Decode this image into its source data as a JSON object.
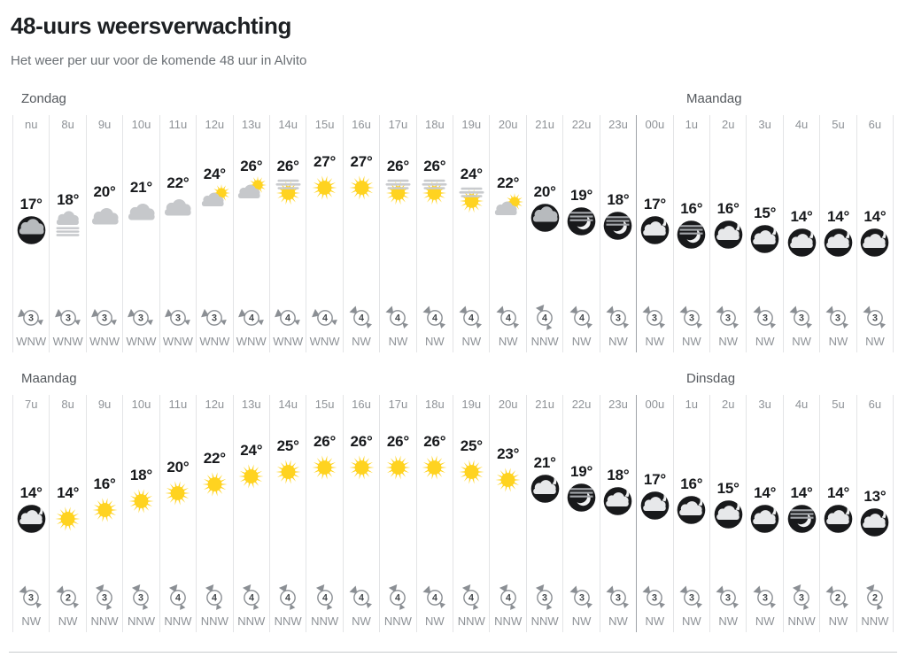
{
  "header": {
    "title": "48-uurs weersverwachting",
    "subtitle": "Het weer per uur voor de komende 48 uur in Alvito"
  },
  "colors": {
    "sun": "#ffd320",
    "cloud_gray": "#c6c8cb",
    "haze_line": "#c9cbce",
    "night_bg": "#18191b",
    "night_cloud": "#e7e8ea",
    "night_cloud_gray": "#b7babd",
    "night_haze_line": "#a2a5a9",
    "wind_gray": "#8b8f94",
    "wind_number": "#43474b"
  },
  "blocks": [
    {
      "left_day": "Zondag",
      "right_day": "Maandag",
      "day_split_index": 17,
      "hours": [
        {
          "hour": "nu",
          "temp": 17,
          "icon": "night-overcast",
          "wind_force": 3,
          "wind_dir": "WNW"
        },
        {
          "hour": "8u",
          "temp": 18,
          "icon": "mist",
          "wind_force": 3,
          "wind_dir": "WNW"
        },
        {
          "hour": "9u",
          "temp": 20,
          "icon": "cloud",
          "wind_force": 3,
          "wind_dir": "WNW"
        },
        {
          "hour": "10u",
          "temp": 21,
          "icon": "cloud",
          "wind_force": 3,
          "wind_dir": "WNW"
        },
        {
          "hour": "11u",
          "temp": 22,
          "icon": "cloud",
          "wind_force": 3,
          "wind_dir": "WNW"
        },
        {
          "hour": "12u",
          "temp": 24,
          "icon": "cloud-sun",
          "wind_force": 3,
          "wind_dir": "WNW"
        },
        {
          "hour": "13u",
          "temp": 26,
          "icon": "cloud-sun",
          "wind_force": 4,
          "wind_dir": "WNW"
        },
        {
          "hour": "14u",
          "temp": 26,
          "icon": "sun-haze",
          "wind_force": 4,
          "wind_dir": "WNW"
        },
        {
          "hour": "15u",
          "temp": 27,
          "icon": "sun",
          "wind_force": 4,
          "wind_dir": "WNW"
        },
        {
          "hour": "16u",
          "temp": 27,
          "icon": "sun",
          "wind_force": 4,
          "wind_dir": "NW"
        },
        {
          "hour": "17u",
          "temp": 26,
          "icon": "sun-haze",
          "wind_force": 4,
          "wind_dir": "NW"
        },
        {
          "hour": "18u",
          "temp": 26,
          "icon": "sun-haze",
          "wind_force": 4,
          "wind_dir": "NW"
        },
        {
          "hour": "19u",
          "temp": 24,
          "icon": "sun-haze",
          "wind_force": 4,
          "wind_dir": "NW"
        },
        {
          "hour": "20u",
          "temp": 22,
          "icon": "cloud-sun",
          "wind_force": 4,
          "wind_dir": "NW"
        },
        {
          "hour": "21u",
          "temp": 20,
          "icon": "night-overcast",
          "wind_force": 4,
          "wind_dir": "NNW"
        },
        {
          "hour": "22u",
          "temp": 19,
          "icon": "night-moon-haze",
          "wind_force": 4,
          "wind_dir": "NW"
        },
        {
          "hour": "23u",
          "temp": 18,
          "icon": "night-moon-haze",
          "wind_force": 3,
          "wind_dir": "NW"
        },
        {
          "hour": "00u",
          "temp": 17,
          "icon": "night-cloud-moon",
          "wind_force": 3,
          "wind_dir": "NW"
        },
        {
          "hour": "1u",
          "temp": 16,
          "icon": "night-moon-haze",
          "wind_force": 3,
          "wind_dir": "NW"
        },
        {
          "hour": "2u",
          "temp": 16,
          "icon": "night-cloud-moon",
          "wind_force": 3,
          "wind_dir": "NW"
        },
        {
          "hour": "3u",
          "temp": 15,
          "icon": "night-cloud-moon",
          "wind_force": 3,
          "wind_dir": "NW"
        },
        {
          "hour": "4u",
          "temp": 14,
          "icon": "night-cloud-moon",
          "wind_force": 3,
          "wind_dir": "NW"
        },
        {
          "hour": "5u",
          "temp": 14,
          "icon": "night-cloud-moon",
          "wind_force": 3,
          "wind_dir": "NW"
        },
        {
          "hour": "6u",
          "temp": 14,
          "icon": "night-cloud-moon",
          "wind_force": 3,
          "wind_dir": "NW"
        }
      ]
    },
    {
      "left_day": "Maandag",
      "right_day": "Dinsdag",
      "day_split_index": 17,
      "hours": [
        {
          "hour": "7u",
          "temp": 14,
          "icon": "night-cloud-moon",
          "wind_force": 3,
          "wind_dir": "NW"
        },
        {
          "hour": "8u",
          "temp": 14,
          "icon": "sun",
          "wind_force": 2,
          "wind_dir": "NW"
        },
        {
          "hour": "9u",
          "temp": 16,
          "icon": "sun",
          "wind_force": 3,
          "wind_dir": "NNW"
        },
        {
          "hour": "10u",
          "temp": 18,
          "icon": "sun",
          "wind_force": 3,
          "wind_dir": "NNW"
        },
        {
          "hour": "11u",
          "temp": 20,
          "icon": "sun",
          "wind_force": 4,
          "wind_dir": "NNW"
        },
        {
          "hour": "12u",
          "temp": 22,
          "icon": "sun",
          "wind_force": 4,
          "wind_dir": "NNW"
        },
        {
          "hour": "13u",
          "temp": 24,
          "icon": "sun",
          "wind_force": 4,
          "wind_dir": "NNW"
        },
        {
          "hour": "14u",
          "temp": 25,
          "icon": "sun",
          "wind_force": 4,
          "wind_dir": "NNW"
        },
        {
          "hour": "15u",
          "temp": 26,
          "icon": "sun",
          "wind_force": 4,
          "wind_dir": "NNW"
        },
        {
          "hour": "16u",
          "temp": 26,
          "icon": "sun",
          "wind_force": 4,
          "wind_dir": "NW"
        },
        {
          "hour": "17u",
          "temp": 26,
          "icon": "sun",
          "wind_force": 4,
          "wind_dir": "NNW"
        },
        {
          "hour": "18u",
          "temp": 26,
          "icon": "sun",
          "wind_force": 4,
          "wind_dir": "NW"
        },
        {
          "hour": "19u",
          "temp": 25,
          "icon": "sun",
          "wind_force": 4,
          "wind_dir": "NNW"
        },
        {
          "hour": "20u",
          "temp": 23,
          "icon": "sun",
          "wind_force": 4,
          "wind_dir": "NNW"
        },
        {
          "hour": "21u",
          "temp": 21,
          "icon": "night-cloud-moon",
          "wind_force": 3,
          "wind_dir": "NNW"
        },
        {
          "hour": "22u",
          "temp": 19,
          "icon": "night-moon-haze",
          "wind_force": 3,
          "wind_dir": "NW"
        },
        {
          "hour": "23u",
          "temp": 18,
          "icon": "night-cloud-moon",
          "wind_force": 3,
          "wind_dir": "NW"
        },
        {
          "hour": "00u",
          "temp": 17,
          "icon": "night-cloud-moon",
          "wind_force": 3,
          "wind_dir": "NW"
        },
        {
          "hour": "1u",
          "temp": 16,
          "icon": "night-cloud-moon",
          "wind_force": 3,
          "wind_dir": "NW"
        },
        {
          "hour": "2u",
          "temp": 15,
          "icon": "night-cloud-moon",
          "wind_force": 3,
          "wind_dir": "NW"
        },
        {
          "hour": "3u",
          "temp": 14,
          "icon": "night-cloud-moon",
          "wind_force": 3,
          "wind_dir": "NW"
        },
        {
          "hour": "4u",
          "temp": 14,
          "icon": "night-moon-haze",
          "wind_force": 3,
          "wind_dir": "NNW"
        },
        {
          "hour": "5u",
          "temp": 14,
          "icon": "night-cloud-moon",
          "wind_force": 2,
          "wind_dir": "NW"
        },
        {
          "hour": "6u",
          "temp": 13,
          "icon": "night-cloud-moon",
          "wind_force": 2,
          "wind_dir": "NNW"
        }
      ]
    }
  ]
}
